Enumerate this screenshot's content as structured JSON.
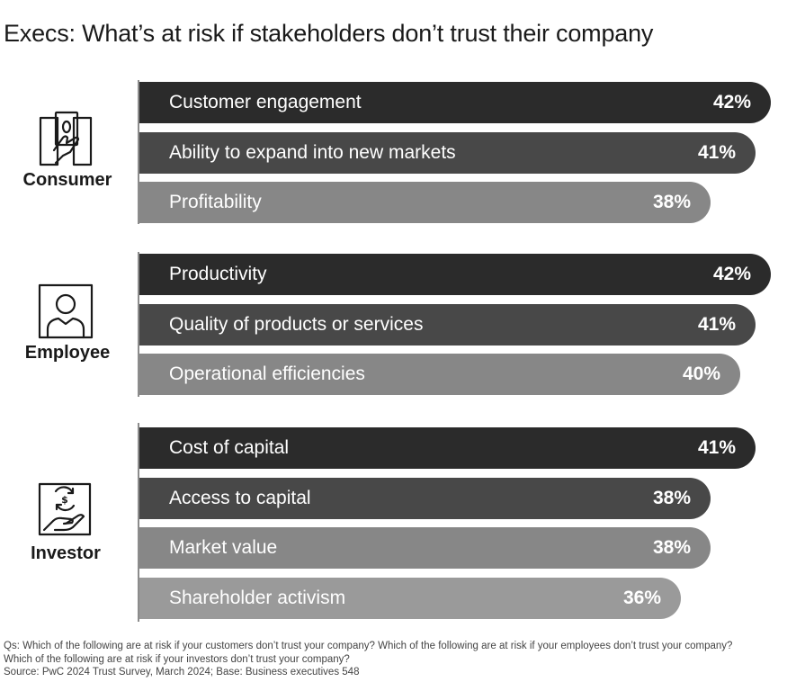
{
  "chart_data": {
    "type": "bar",
    "orientation": "horizontal",
    "title": "Execs: What’s at risk if stakeholders don’t trust their company",
    "unit": "%",
    "xlim": [
      0,
      48
    ],
    "groups": [
      {
        "name": "Consumer",
        "icon": "hand-holding-cash-icon",
        "bars": [
          {
            "label": "Customer engagement",
            "value": 42,
            "display": "42%"
          },
          {
            "label": "Ability to expand into new markets",
            "value": 41,
            "display": "41%"
          },
          {
            "label": "Profitability",
            "value": 38,
            "display": "38%"
          }
        ]
      },
      {
        "name": "Employee",
        "icon": "person-icon",
        "bars": [
          {
            "label": "Productivity",
            "value": 42,
            "display": "42%"
          },
          {
            "label": "Quality of products or services",
            "value": 41,
            "display": "41%"
          },
          {
            "label": "Operational efficiencies",
            "value": 40,
            "display": "40%"
          }
        ]
      },
      {
        "name": "Investor",
        "icon": "hand-dollar-coin-icon",
        "bars": [
          {
            "label": "Cost of capital",
            "value": 41,
            "display": "41%"
          },
          {
            "label": "Access to capital",
            "value": 38,
            "display": "38%"
          },
          {
            "label": "Market value",
            "value": 38,
            "display": "38%"
          },
          {
            "label": "Shareholder activism",
            "value": 36,
            "display": "36%"
          }
        ]
      }
    ],
    "bar_shades": [
      "#2b2b2b",
      "#484848",
      "#878787",
      "#9a9a9a"
    ]
  },
  "footnote": {
    "line1": "Qs: Which of the following are at risk if your customers don’t trust your company? Which of the following are at risk if your employees don’t trust your company?",
    "line2": "Which of the following are at risk if your investors don’t trust your company?",
    "line3": "Source: PwC 2024 Trust Survey, March 2024; Base: Business executives 548"
  }
}
